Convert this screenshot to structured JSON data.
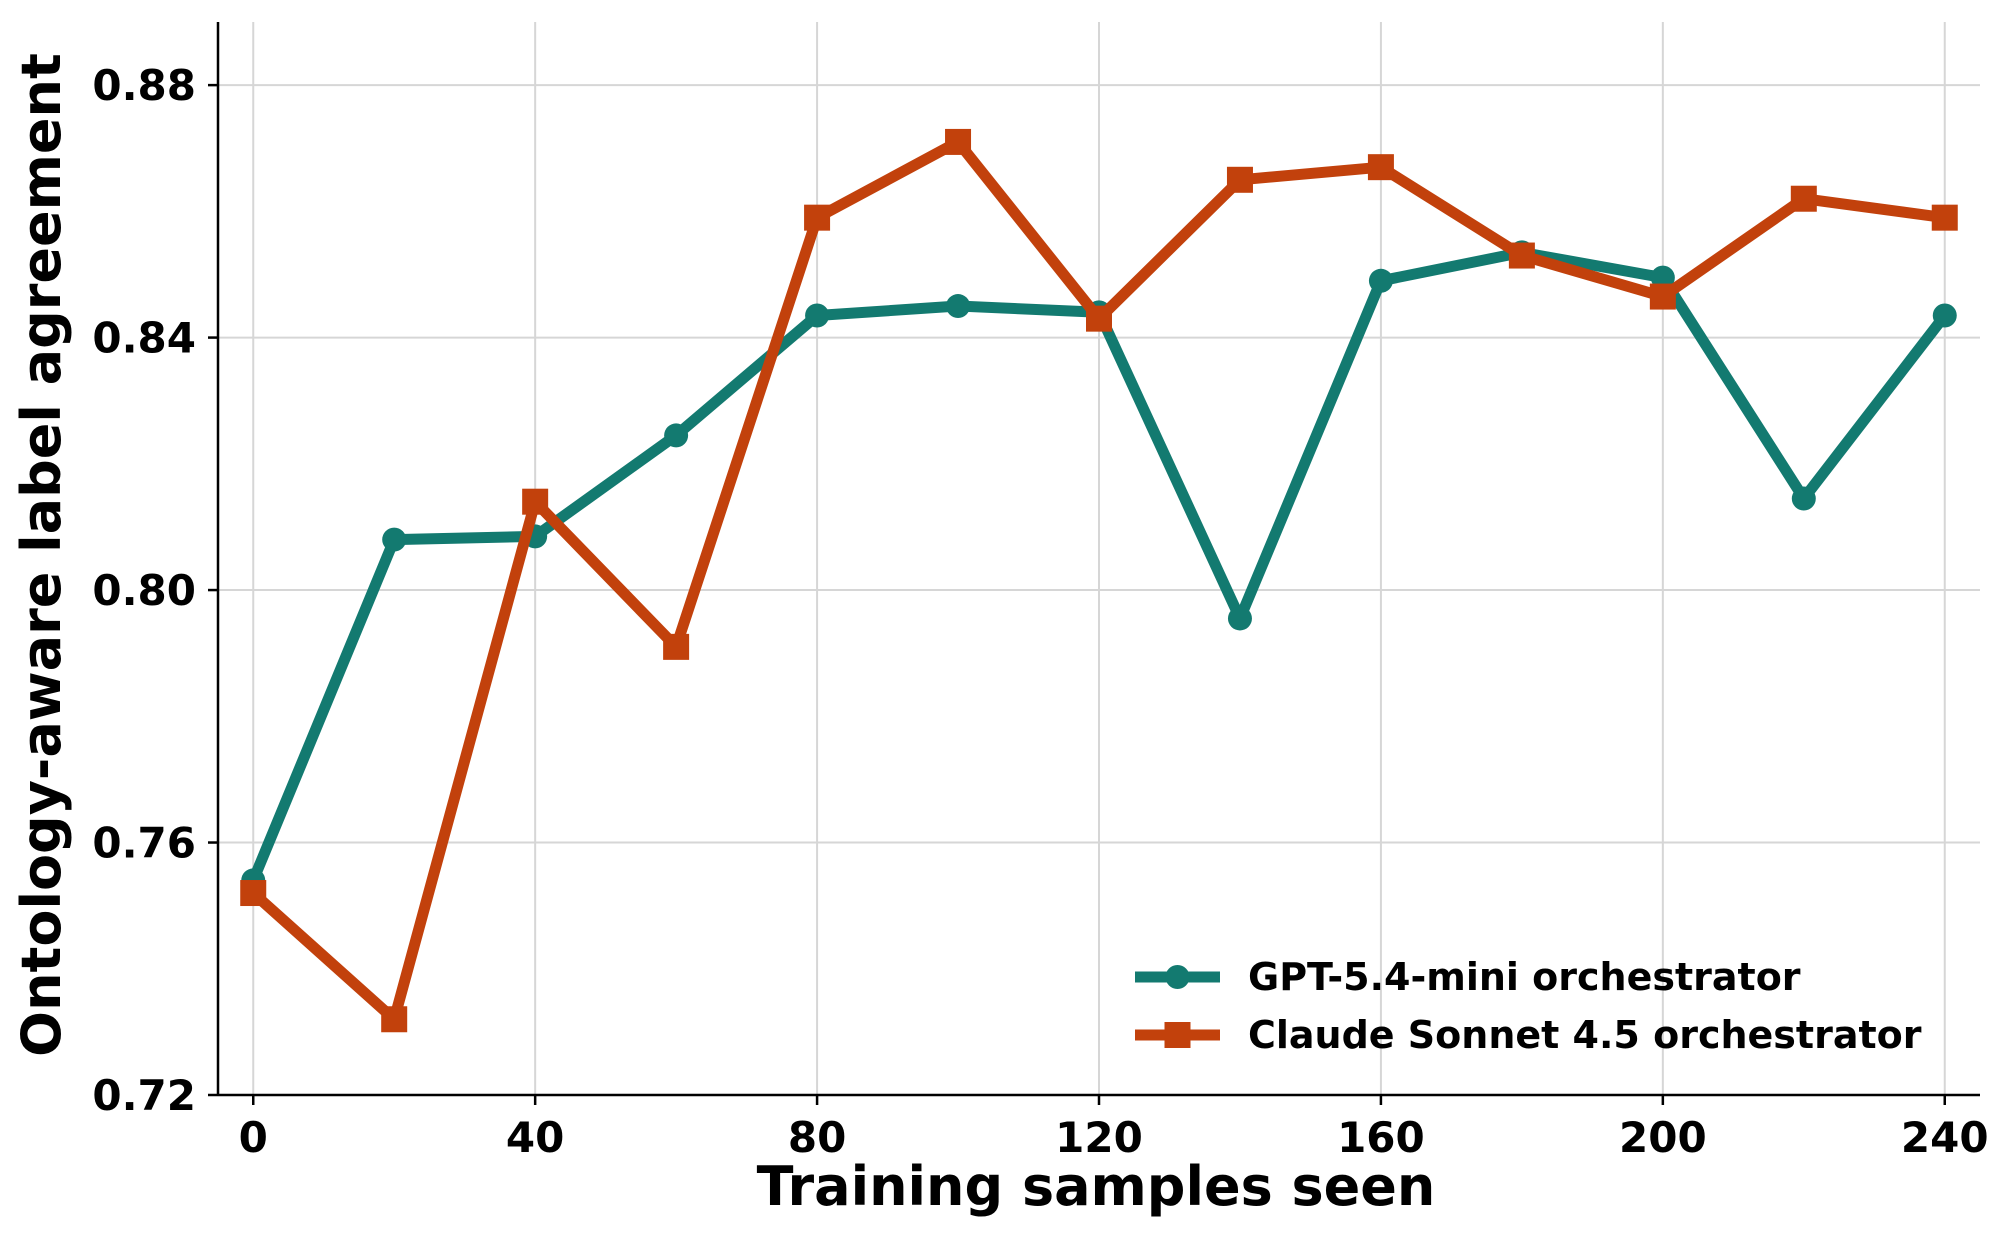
{
  "chart_data": {
    "type": "line",
    "xlabel": "Training samples seen",
    "ylabel": "Ontology-aware label agreement",
    "xlim": [
      -5,
      245
    ],
    "ylim": [
      0.72,
      0.89
    ],
    "xticks": [
      0,
      40,
      80,
      120,
      160,
      200,
      240
    ],
    "yticks": [
      0.72,
      0.76,
      0.8,
      0.84,
      0.88
    ],
    "xtick_labels": [
      "0",
      "40",
      "80",
      "120",
      "160",
      "200",
      "240"
    ],
    "ytick_labels": [
      "0.72",
      "0.76",
      "0.80",
      "0.84",
      "0.88"
    ],
    "grid": true,
    "legend_position": "lower-right",
    "x": [
      0,
      20,
      40,
      60,
      80,
      100,
      120,
      140,
      160,
      180,
      200,
      220,
      240
    ],
    "series": [
      {
        "name": "GPT-5.4-mini orchestrator",
        "color": "#137a70",
        "marker": "circle",
        "values": [
          0.754,
          0.808,
          0.8085,
          0.8245,
          0.8435,
          0.845,
          0.844,
          0.7955,
          0.849,
          0.8535,
          0.8495,
          0.8145,
          0.8435
        ]
      },
      {
        "name": "Claude Sonnet 4.5 orchestrator",
        "color": "#c2410c",
        "marker": "square",
        "values": [
          0.752,
          0.732,
          0.814,
          0.791,
          0.859,
          0.871,
          0.843,
          0.865,
          0.867,
          0.853,
          0.8465,
          0.862,
          0.859
        ]
      }
    ]
  }
}
